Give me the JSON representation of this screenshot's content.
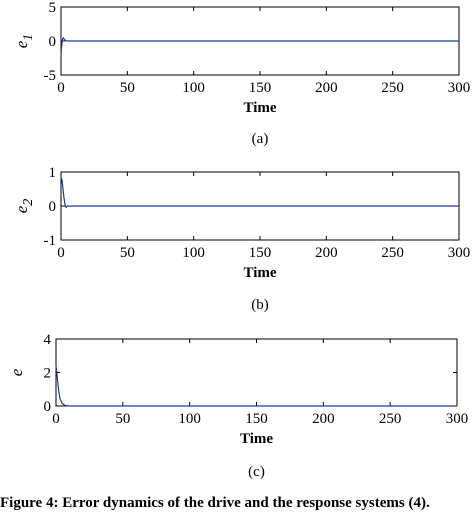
{
  "chart_data": [
    {
      "type": "line",
      "panel_label": "(a)",
      "ylabel": "e",
      "ylabel_sub": "1",
      "xlabel": "Time",
      "xlim": [
        0,
        300
      ],
      "ylim": [
        -5,
        5
      ],
      "xticks": [
        0,
        50,
        100,
        150,
        200,
        250,
        300
      ],
      "yticks": [
        -5,
        0,
        5
      ],
      "grid": false,
      "series": [
        {
          "color": "#1f3a93",
          "x": [
            0,
            0.3,
            0.7,
            1.2,
            1.8,
            2.5,
            3.5,
            5,
            8,
            300
          ],
          "y": [
            -2.2,
            -1.2,
            -0.4,
            0.3,
            0.45,
            0.25,
            0.05,
            0,
            0,
            0
          ]
        }
      ]
    },
    {
      "type": "line",
      "panel_label": "(b)",
      "ylabel": "e",
      "ylabel_sub": "2",
      "xlabel": "Time",
      "xlim": [
        0,
        300
      ],
      "ylim": [
        -1,
        1
      ],
      "xticks": [
        0,
        50,
        100,
        150,
        200,
        250,
        300
      ],
      "yticks": [
        -1,
        0,
        1
      ],
      "grid": false,
      "series": [
        {
          "color": "#1f3a93",
          "x": [
            0,
            0.8,
            1.5,
            2.2,
            3,
            3.8,
            5,
            300
          ],
          "y": [
            0.85,
            0.75,
            0.5,
            0.25,
            0.05,
            -0.04,
            0,
            0
          ]
        }
      ]
    },
    {
      "type": "line",
      "panel_label": "(c)",
      "ylabel": "e",
      "xlabel": "Time",
      "xlim": [
        0,
        300
      ],
      "ylim": [
        0,
        4
      ],
      "xticks": [
        0,
        50,
        100,
        150,
        200,
        250,
        300
      ],
      "yticks": [
        0,
        2,
        4
      ],
      "grid": false,
      "series": [
        {
          "color": "#1f3a93",
          "x": [
            0,
            0.6,
            1.2,
            2,
            3,
            4.5,
            7,
            10,
            300
          ],
          "y": [
            2.4,
            2.0,
            1.5,
            0.9,
            0.45,
            0.15,
            0.03,
            0,
            0
          ]
        }
      ]
    }
  ],
  "caption": {
    "text": "Figure 4: Error dynamics of the drive and the response systems (4)."
  }
}
